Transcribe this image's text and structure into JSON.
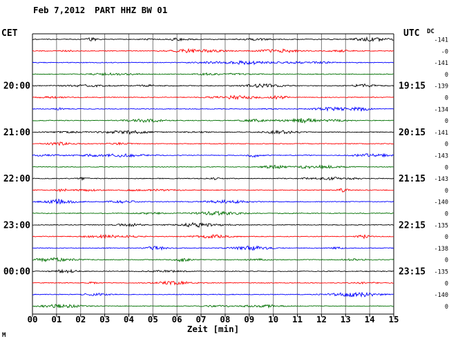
{
  "header": {
    "date": "Feb 7,2012",
    "station": "PART HHZ BW 01"
  },
  "left_axis": {
    "label": "CET"
  },
  "right_axis": {
    "label": "UTC"
  },
  "dc_column_label": "DC",
  "x_axis": {
    "label": "Zeit [min]",
    "ticks": [
      "00",
      "01",
      "02",
      "03",
      "04",
      "05",
      "06",
      "07",
      "08",
      "09",
      "10",
      "11",
      "12",
      "13",
      "14",
      "15"
    ]
  },
  "footer": {
    "corner_mark": "M"
  },
  "colors": {
    "trace_black": "#000000",
    "trace_red": "#ff0000",
    "trace_blue": "#0000ff",
    "trace_green": "#007000",
    "grid": "#7a7a7a",
    "frame": "#000000"
  },
  "chart_data": {
    "type": "line",
    "title": "Feb 7,2012 PART HHZ BW 01 helicorder seismogram",
    "xlabel": "Zeit [min]",
    "x_range_minutes": [
      0,
      15
    ],
    "minutes_per_line": 15,
    "lines_per_hour": 4,
    "description": "24 mostly-flat seismic noise traces, 15 minutes each, colors cycling black/red/blue/green; left labels CET hours, right labels UTC quarter-hours, far right DC offsets",
    "traces": [
      {
        "color": "#000000",
        "cet": "",
        "utc": "",
        "dc": "-141"
      },
      {
        "color": "#ff0000",
        "cet": "",
        "utc": "",
        "dc": "-0"
      },
      {
        "color": "#0000ff",
        "cet": "",
        "utc": "",
        "dc": "-141"
      },
      {
        "color": "#007000",
        "cet": "",
        "utc": "",
        "dc": "0"
      },
      {
        "color": "#000000",
        "cet": "20:00",
        "utc": "19:15",
        "dc": "-139"
      },
      {
        "color": "#ff0000",
        "cet": "",
        "utc": "",
        "dc": "0"
      },
      {
        "color": "#0000ff",
        "cet": "",
        "utc": "",
        "dc": "-134"
      },
      {
        "color": "#007000",
        "cet": "",
        "utc": "",
        "dc": "0"
      },
      {
        "color": "#000000",
        "cet": "21:00",
        "utc": "20:15",
        "dc": "-141"
      },
      {
        "color": "#ff0000",
        "cet": "",
        "utc": "",
        "dc": "0"
      },
      {
        "color": "#0000ff",
        "cet": "",
        "utc": "",
        "dc": "-143"
      },
      {
        "color": "#007000",
        "cet": "",
        "utc": "",
        "dc": "0"
      },
      {
        "color": "#000000",
        "cet": "22:00",
        "utc": "21:15",
        "dc": "-143"
      },
      {
        "color": "#ff0000",
        "cet": "",
        "utc": "",
        "dc": "0"
      },
      {
        "color": "#0000ff",
        "cet": "",
        "utc": "",
        "dc": "-140"
      },
      {
        "color": "#007000",
        "cet": "",
        "utc": "",
        "dc": "0"
      },
      {
        "color": "#000000",
        "cet": "23:00",
        "utc": "22:15",
        "dc": "-135"
      },
      {
        "color": "#ff0000",
        "cet": "",
        "utc": "",
        "dc": "0"
      },
      {
        "color": "#0000ff",
        "cet": "",
        "utc": "",
        "dc": "-138"
      },
      {
        "color": "#007000",
        "cet": "",
        "utc": "",
        "dc": "0"
      },
      {
        "color": "#000000",
        "cet": "00:00",
        "utc": "23:15",
        "dc": "-135"
      },
      {
        "color": "#ff0000",
        "cet": "",
        "utc": "",
        "dc": "0"
      },
      {
        "color": "#0000ff",
        "cet": "",
        "utc": "",
        "dc": "-140"
      },
      {
        "color": "#007000",
        "cet": "",
        "utc": "",
        "dc": "0"
      }
    ]
  }
}
